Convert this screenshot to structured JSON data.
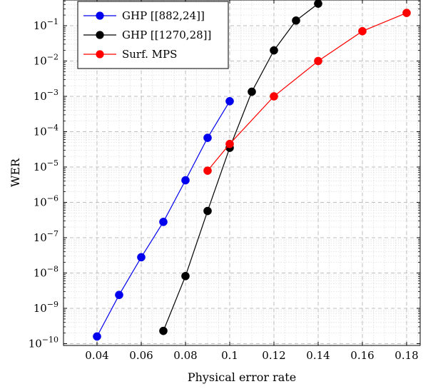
{
  "chart_data": {
    "type": "line",
    "xlabel": "Physical error rate",
    "ylabel": "WER",
    "xlim": [
      0.03,
      0.19
    ],
    "ylim": [
      1e-10,
      1
    ],
    "yscale": "log",
    "grid": true,
    "legend_position": "top-left",
    "x_ticks": [
      "0.04",
      "0.06",
      "0.08",
      "0.1",
      "0.12",
      "0.14",
      "0.16",
      "0.18"
    ],
    "y_ticks": [
      {
        "base": "10",
        "exp": "−10"
      },
      {
        "base": "10",
        "exp": "−9"
      },
      {
        "base": "10",
        "exp": "−8"
      },
      {
        "base": "10",
        "exp": "−7"
      },
      {
        "base": "10",
        "exp": "−6"
      },
      {
        "base": "10",
        "exp": "−5"
      },
      {
        "base": "10",
        "exp": "−4"
      },
      {
        "base": "10",
        "exp": "−3"
      },
      {
        "base": "10",
        "exp": "−2"
      },
      {
        "base": "10",
        "exp": "−1"
      }
    ],
    "series": [
      {
        "name": "GHP [[882,24]]",
        "color": "#0000ee",
        "x": [
          0.04,
          0.05,
          0.06,
          0.07,
          0.08,
          0.09,
          0.1
        ],
        "y": [
          1.6e-10,
          2.4e-09,
          2.8e-08,
          2.8e-07,
          4.2e-06,
          6.7e-05,
          0.00073
        ]
      },
      {
        "name": "GHP [[1270,28]]",
        "color": "#000000",
        "x": [
          0.07,
          0.08,
          0.09,
          0.1,
          0.11,
          0.12,
          0.13,
          0.14
        ],
        "y": [
          2.3e-10,
          8.2e-09,
          5.7e-07,
          3.5e-05,
          0.00135,
          0.02,
          0.14,
          0.42
        ]
      },
      {
        "name": "Surf. MPS",
        "color": "#ff0000",
        "x": [
          0.09,
          0.1,
          0.12,
          0.14,
          0.16,
          0.18
        ],
        "y": [
          7.9e-06,
          4.5e-05,
          0.001,
          0.01,
          0.07,
          0.23
        ]
      }
    ]
  }
}
